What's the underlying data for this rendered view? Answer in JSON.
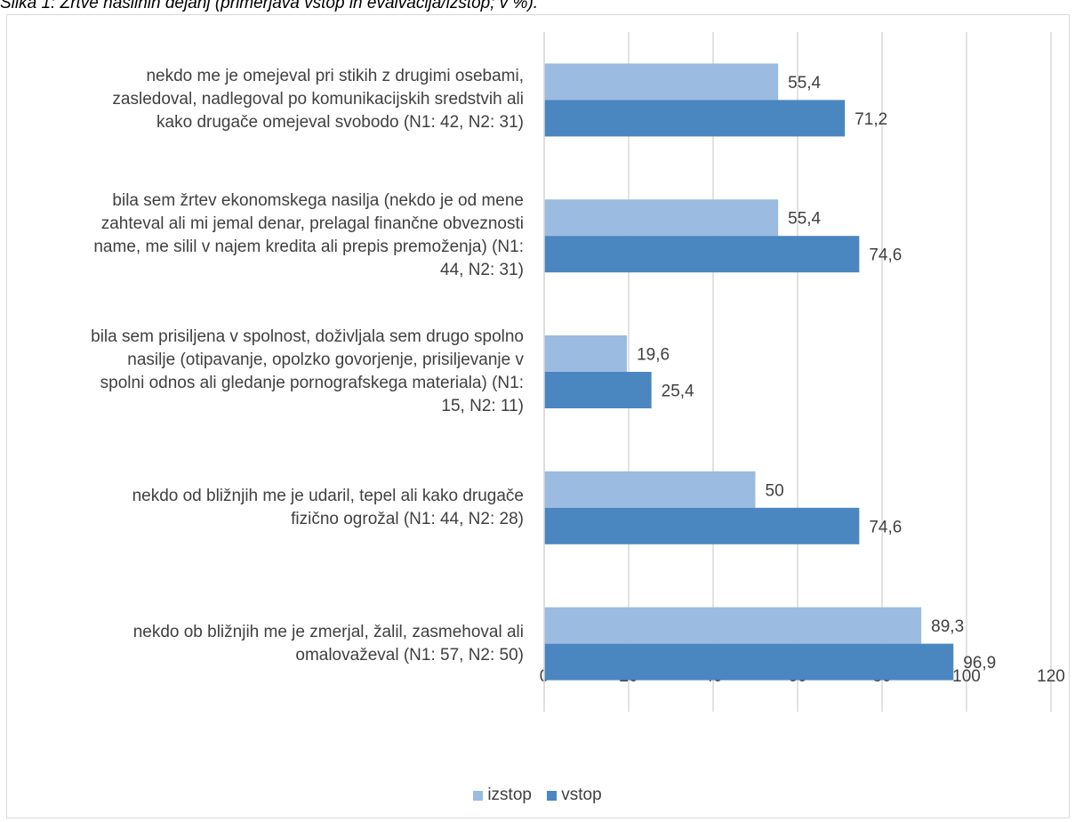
{
  "caption": "Slika 1: Žrtve nasilnih dejanj (primerjava vstop in evalvacija/izstop; v %).",
  "colors": {
    "izstop": "#9bbbe0",
    "vstop": "#4a86bf",
    "grid": "#d9d9d9",
    "text": "#404040"
  },
  "chart_data": {
    "type": "bar",
    "orientation": "horizontal",
    "title": "",
    "xlim": [
      0,
      120
    ],
    "x_ticks": [
      "0",
      "20",
      "40",
      "60",
      "80",
      "100",
      "120"
    ],
    "categories": [
      "nekdo me je omejeval pri stikih z drugimi osebami, zasledoval, nadlegoval po komunikacijskih sredstvih ali kako drugače omejeval svobodo (N1: 42, N2: 31)",
      "bila sem žrtev ekonomskega nasilja (nekdo je od mene zahteval ali mi jemal denar, prelagal finančne obveznosti name, me silil v najem kredita ali prepis premoženja) (N1: 44, N2: 31)",
      "bila sem prisiljena v spolnost, doživljala sem drugo spolno nasilje (otipavanje, opolzko govorjenje, prisiljevanje v spolni odnos ali gledanje pornografskega materiala) (N1: 15, N2: 11)",
      "nekdo od bližnjih me je udaril, tepel ali kako drugače fizično ogrožal (N1: 44, N2: 28)",
      "nekdo ob bližnjih me je zmerjal, žalil, zasmehoval ali omalovaževal (N1: 57, N2: 50)"
    ],
    "category_lines": [
      [
        "nekdo me je omejeval pri stikih z drugimi osebami,",
        "zasledoval, nadlegoval po komunikacijskih sredstvih ali",
        "kako drugače omejeval svobodo (N1: 42, N2: 31)"
      ],
      [
        "bila sem žrtev ekonomskega nasilja (nekdo je od mene",
        "zahteval ali mi jemal denar, prelagal finančne obveznosti",
        "name, me silil v najem kredita ali prepis premoženja) (N1:",
        "44, N2: 31)"
      ],
      [
        "bila sem prisiljena v spolnost, doživljala sem drugo spolno",
        "nasilje (otipavanje, opolzko govorjenje, prisiljevanje v",
        "spolni odnos ali gledanje pornografskega materiala) (N1:",
        "15, N2: 11)"
      ],
      [
        "nekdo od bližnjih me je udaril, tepel ali kako drugače",
        "fizično ogrožal (N1: 44, N2: 28)"
      ],
      [
        "nekdo ob bližnjih me je zmerjal, žalil, zasmehoval ali",
        "omalovaževal (N1: 57, N2: 50)"
      ]
    ],
    "series": [
      {
        "name": "izstop",
        "values": [
          55.4,
          55.4,
          19.6,
          50,
          89.3
        ],
        "labels": [
          "55,4",
          "55,4",
          "19,6",
          "50",
          "89,3"
        ]
      },
      {
        "name": "vstop",
        "values": [
          71.2,
          74.6,
          25.4,
          74.6,
          96.9
        ],
        "labels": [
          "71,2",
          "74,6",
          "25,4",
          "74,6",
          "96,9"
        ]
      }
    ],
    "legend_position": "bottom",
    "grid": true
  }
}
